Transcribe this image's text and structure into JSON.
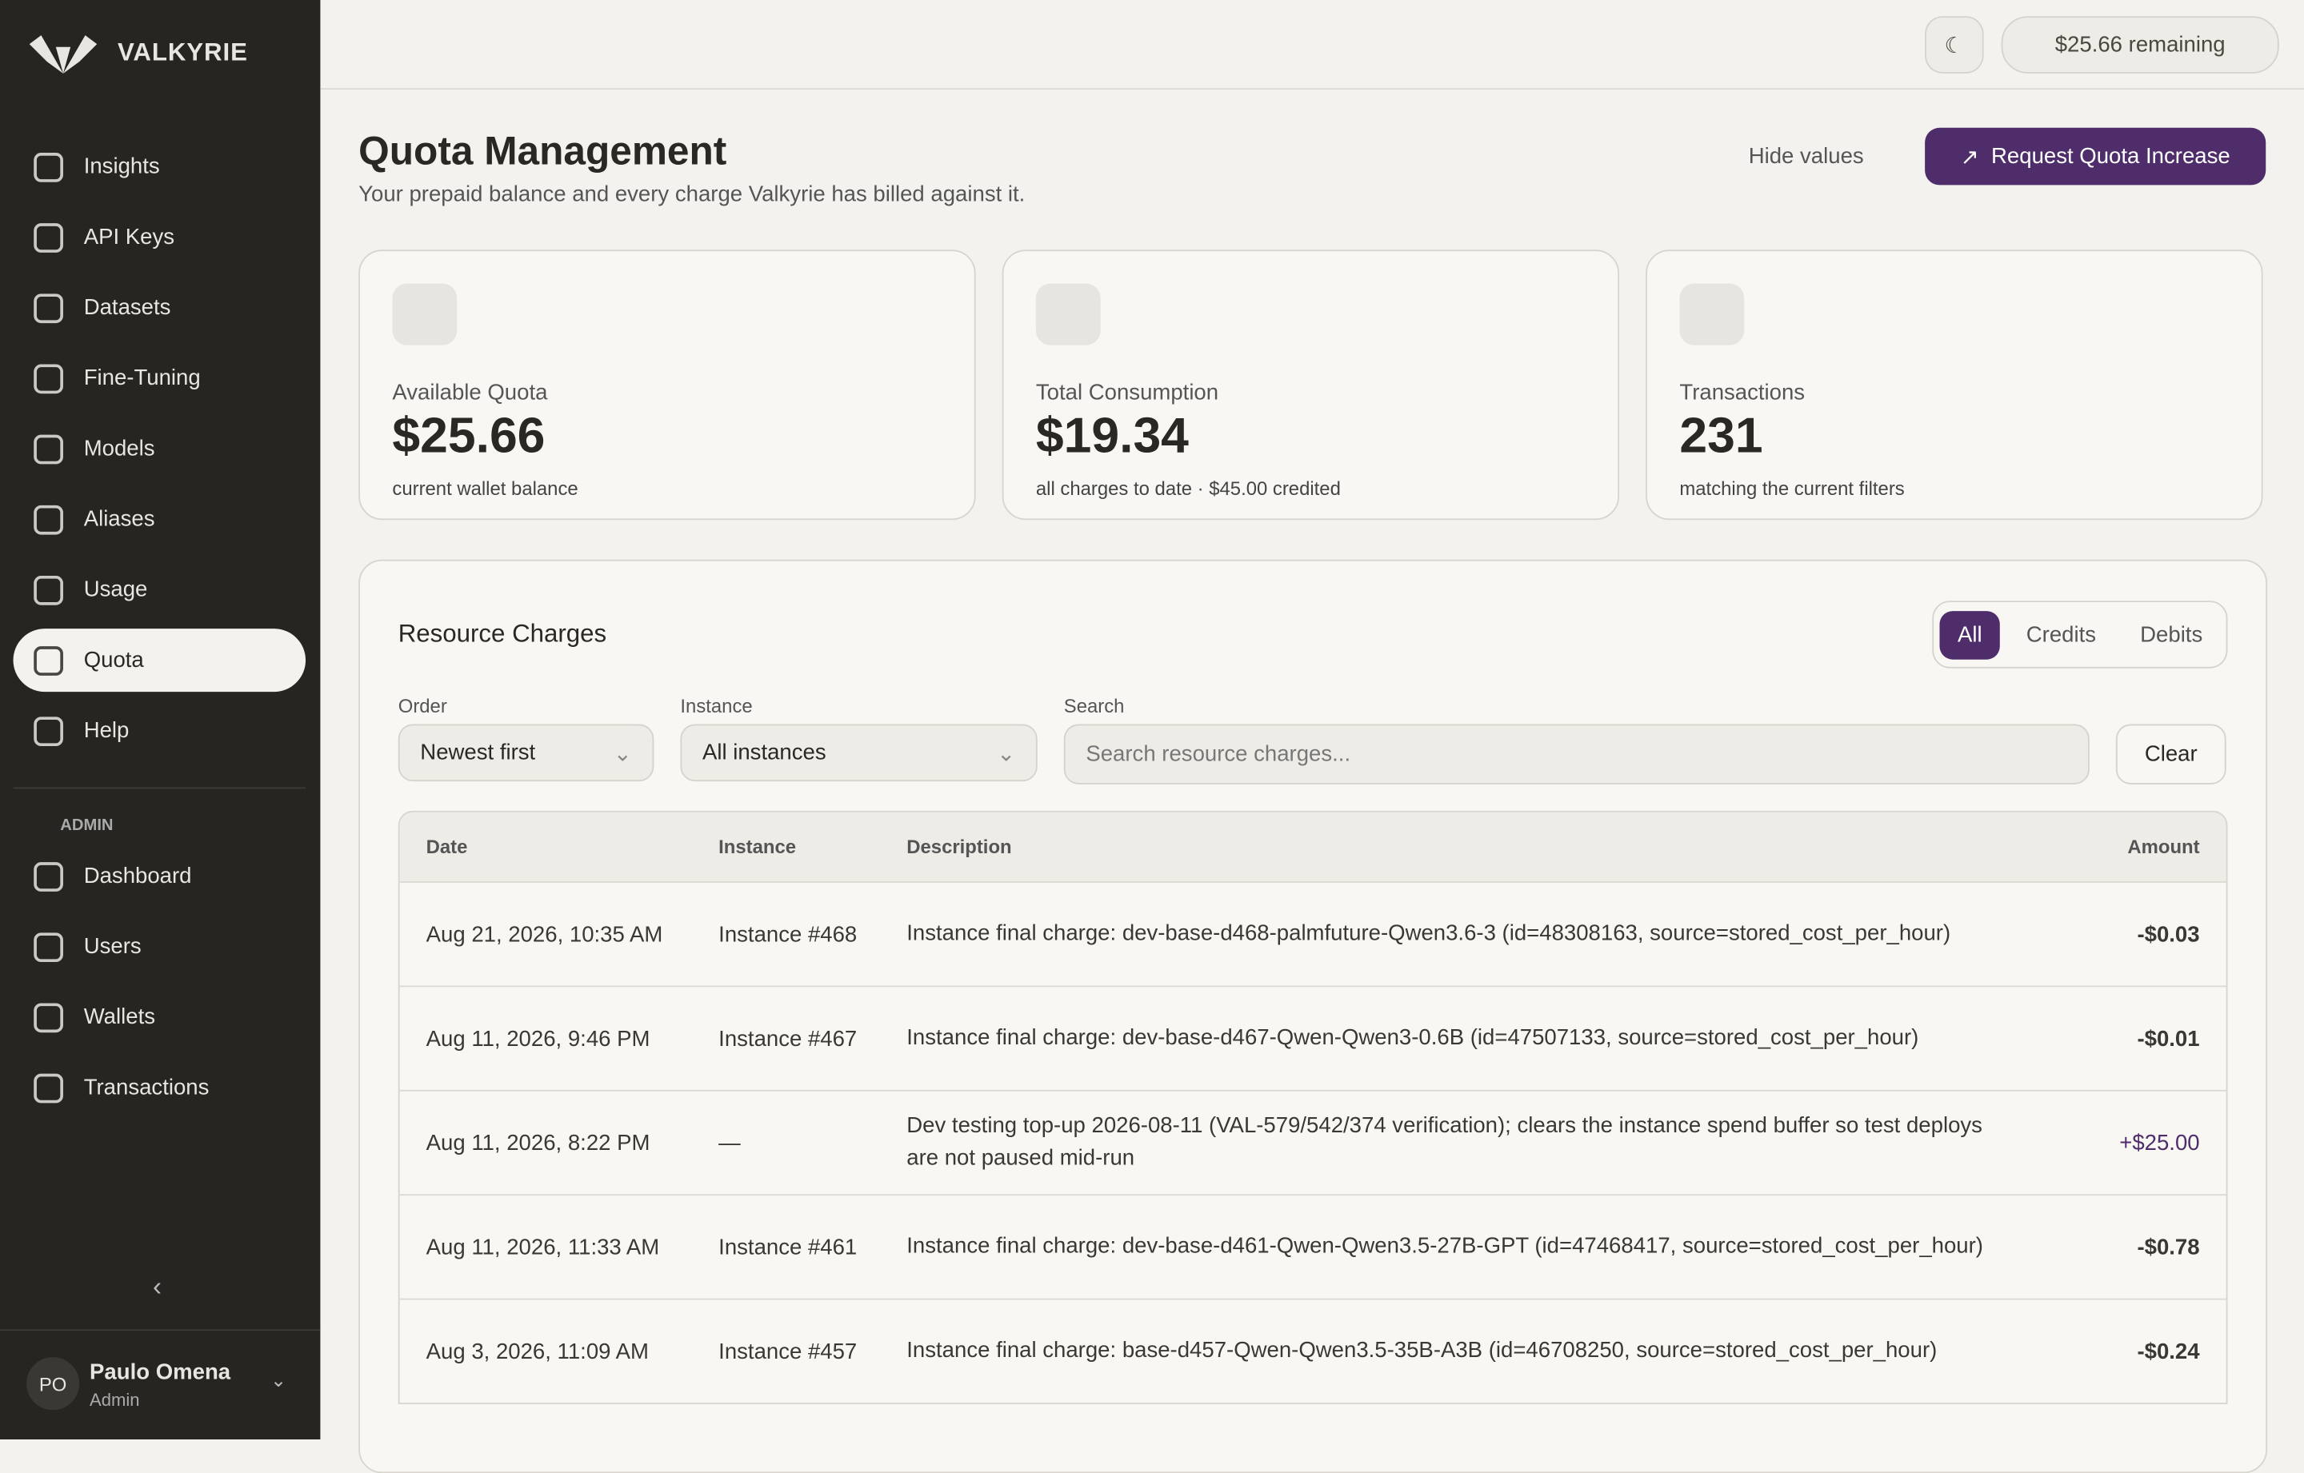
{
  "sidebar": {
    "brand": "VALKYRIE",
    "nav": [
      "Insights",
      "API Keys",
      "Datasets",
      "Fine-Tuning",
      "Models",
      "Aliases",
      "Usage",
      "Quota",
      "Help"
    ],
    "active": 7,
    "admin_label": "ADMIN",
    "admin_nav": [
      "Dashboard",
      "Users",
      "Wallets",
      "Transactions"
    ],
    "user": {
      "initials": "PO",
      "name": "Paulo Omena",
      "role": "Admin"
    }
  },
  "topbar": {
    "remaining": "$25.66 remaining"
  },
  "header": {
    "title": "Quota Management",
    "subtitle": "Your prepaid balance and every charge Valkyrie has billed against it.",
    "hide_values": "Hide values",
    "request_button": "Request Quota Increase"
  },
  "cards": [
    {
      "label": "Available Quota",
      "value": "$25.66",
      "note": "current wallet balance"
    },
    {
      "label": "Total Consumption",
      "value": "$19.34",
      "note": "all charges to date · $45.00 credited"
    },
    {
      "label": "Transactions",
      "value": "231",
      "note": "matching the current filters"
    }
  ],
  "charges": {
    "title": "Resource Charges",
    "filters": [
      "All",
      "Credits",
      "Debits"
    ],
    "order_label": "Order",
    "order_value": "Newest first",
    "instance_label": "Instance",
    "instance_value": "All instances",
    "search_label": "Search",
    "search_placeholder": "Search resource charges...",
    "clear": "Clear",
    "table": {
      "columns": [
        "Date",
        "Instance",
        "Description",
        "Amount"
      ],
      "rows": [
        [
          "Aug 21, 2026, 10:35 AM",
          "Instance #468",
          "Instance final charge: dev-base-d468-palmfuture-Qwen3.6-3 (id=48308163, source=stored_cost_per_hour)",
          "-$0.03"
        ],
        [
          "Aug 11, 2026, 9:46 PM",
          "Instance #467",
          "Instance final charge: dev-base-d467-Qwen-Qwen3-0.6B (id=47507133, source=stored_cost_per_hour)",
          "-$0.01"
        ],
        [
          "Aug 11, 2026, 8:22 PM",
          "—",
          "Dev testing top-up 2026-08-11 (VAL-579/542/374 verification); clears the instance spend buffer so test deploys are not paused mid-run",
          "+$25.00"
        ],
        [
          "Aug 11, 2026, 11:33 AM",
          "Instance #461",
          "Instance final charge: dev-base-d461-Qwen-Qwen3.5-27B-GPT (id=47468417, source=stored_cost_per_hour)",
          "-$0.78"
        ],
        [
          "Aug 3, 2026, 11:09 AM",
          "Instance #457",
          "Instance final charge: base-d457-Qwen-Qwen3.5-35B-A3B (id=46708250, source=stored_cost_per_hour)",
          "-$0.24"
        ]
      ]
    }
  }
}
